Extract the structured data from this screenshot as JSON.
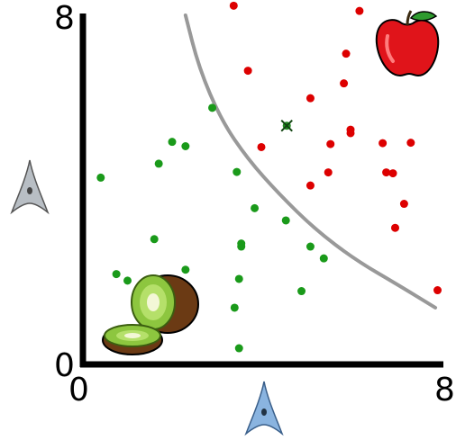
{
  "chart_data": {
    "type": "scatter",
    "xlim": [
      0,
      8
    ],
    "ylim": [
      0,
      8
    ],
    "grid": false,
    "x_ticks": [
      "0",
      "8"
    ],
    "y_ticks": [
      "0",
      "8"
    ],
    "decision_boundary": {
      "color": "#999999",
      "points": [
        [
          2.3,
          8.0
        ],
        [
          2.6,
          6.8
        ],
        [
          3.1,
          5.6
        ],
        [
          3.7,
          4.7
        ],
        [
          4.4,
          3.9
        ],
        [
          5.2,
          3.1
        ],
        [
          6.1,
          2.4
        ],
        [
          7.1,
          1.8
        ],
        [
          7.9,
          1.3
        ]
      ]
    },
    "marked_point": {
      "x": 4.57,
      "y": 5.47,
      "color": "#228b22",
      "marker": "x"
    },
    "series": [
      {
        "color": "#dd0000",
        "icon": "apple-icon",
        "points": [
          [
            3.38,
            8.22
          ],
          [
            6.2,
            8.1
          ],
          [
            5.9,
            7.12
          ],
          [
            3.7,
            6.73
          ],
          [
            5.85,
            6.44
          ],
          [
            5.1,
            6.1
          ],
          [
            4.0,
            4.98
          ],
          [
            5.55,
            5.05
          ],
          [
            6.0,
            5.38
          ],
          [
            6.0,
            5.3
          ],
          [
            6.72,
            5.07
          ],
          [
            7.35,
            5.08
          ],
          [
            5.5,
            4.4
          ],
          [
            6.8,
            4.4
          ],
          [
            6.95,
            4.38
          ],
          [
            5.1,
            4.1
          ],
          [
            7.2,
            3.68
          ],
          [
            7.0,
            3.13
          ],
          [
            7.95,
            1.7
          ]
        ]
      },
      {
        "color": "#1a9a1a",
        "icon": "kiwi-icon",
        "points": [
          [
            2.9,
            5.88
          ],
          [
            2.0,
            5.1
          ],
          [
            2.3,
            5.0
          ],
          [
            1.7,
            4.6
          ],
          [
            0.4,
            4.28
          ],
          [
            3.45,
            4.41
          ],
          [
            3.85,
            3.58
          ],
          [
            4.55,
            3.3
          ],
          [
            3.55,
            2.77
          ],
          [
            3.55,
            2.7
          ],
          [
            5.1,
            2.7
          ],
          [
            5.4,
            2.43
          ],
          [
            1.6,
            2.87
          ],
          [
            0.75,
            2.07
          ],
          [
            1.0,
            1.92
          ],
          [
            2.3,
            2.17
          ],
          [
            3.5,
            1.96
          ],
          [
            4.9,
            1.68
          ],
          [
            3.4,
            1.3
          ],
          [
            3.5,
            0.37
          ]
        ]
      }
    ]
  },
  "icons": {
    "y_axis": "gray-arrow-cell-icon",
    "x_axis": "blue-arrow-cell-icon",
    "top_right": "apple-icon",
    "bottom_left": "kiwi-icon"
  }
}
